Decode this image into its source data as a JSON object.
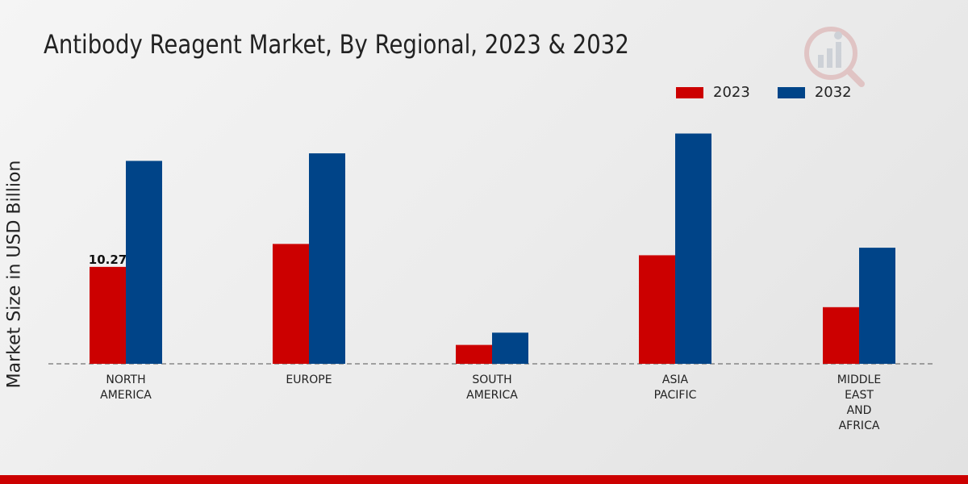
{
  "colors": {
    "series_2023": "#cc0000",
    "series_2032": "#004488",
    "bottom_bar": "#cc0000"
  },
  "chart_data": {
    "type": "bar",
    "title": "Antibody Reagent Market, By Regional, 2023 & 2032",
    "xlabel": "",
    "ylabel": "Market Size in USD Billion",
    "ylim": [
      0,
      30
    ],
    "legend_position": "top-right",
    "categories": [
      [
        "NORTH",
        "AMERICA"
      ],
      [
        "EUROPE"
      ],
      [
        "SOUTH",
        "AMERICA"
      ],
      [
        "ASIA",
        "PACIFIC"
      ],
      [
        "MIDDLE",
        "EAST",
        "AND",
        "AFRICA"
      ]
    ],
    "series": [
      {
        "name": "2023",
        "values": [
          10.27,
          12.7,
          2.0,
          11.5,
          6.0
        ]
      },
      {
        "name": "2032",
        "values": [
          21.5,
          22.3,
          3.3,
          24.4,
          12.3
        ]
      }
    ],
    "data_labels": [
      {
        "series": 0,
        "index": 0,
        "text": "10.27"
      }
    ]
  }
}
